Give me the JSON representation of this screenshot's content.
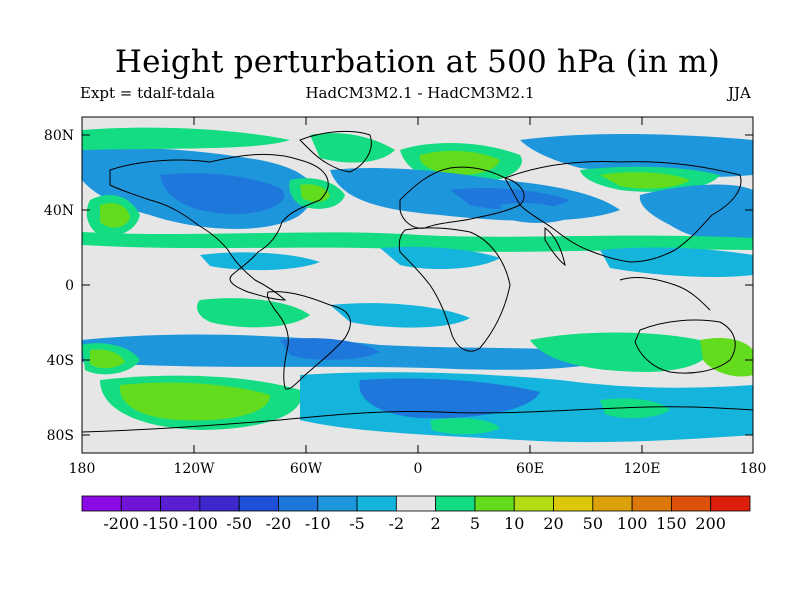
{
  "title": "Height perturbation at 500 hPa (in m)",
  "subtitle_left": "Expt = tdalf-tdala",
  "subtitle_center": "HadCM3M2.1 - HadCM3M2.1",
  "subtitle_right": "JJA",
  "map": {
    "lat_ticks": [
      "80N",
      "40N",
      "0",
      "40S",
      "80S"
    ],
    "lon_ticks": [
      "180",
      "120W",
      "60W",
      "0",
      "60E",
      "120E",
      "180"
    ],
    "background_color": "#e6e6e6",
    "coast_color": "#000000"
  },
  "colorbar": {
    "colors": [
      "#8a0ae6",
      "#7014d8",
      "#5a1ed2",
      "#3c28cc",
      "#1e4fd8",
      "#1e78dc",
      "#1e96dc",
      "#14b4dc",
      "#e6e6e6",
      "#14dc82",
      "#64dc1e",
      "#b4dc14",
      "#dcc80a",
      "#dca00a",
      "#dc780a",
      "#dc500a",
      "#dc1e0a"
    ],
    "labels": [
      "-200",
      "-150",
      "-100",
      "-50",
      "-20",
      "-10",
      "-5",
      "-2",
      "2",
      "5",
      "10",
      "20",
      "50",
      "100",
      "150",
      "200"
    ]
  }
}
